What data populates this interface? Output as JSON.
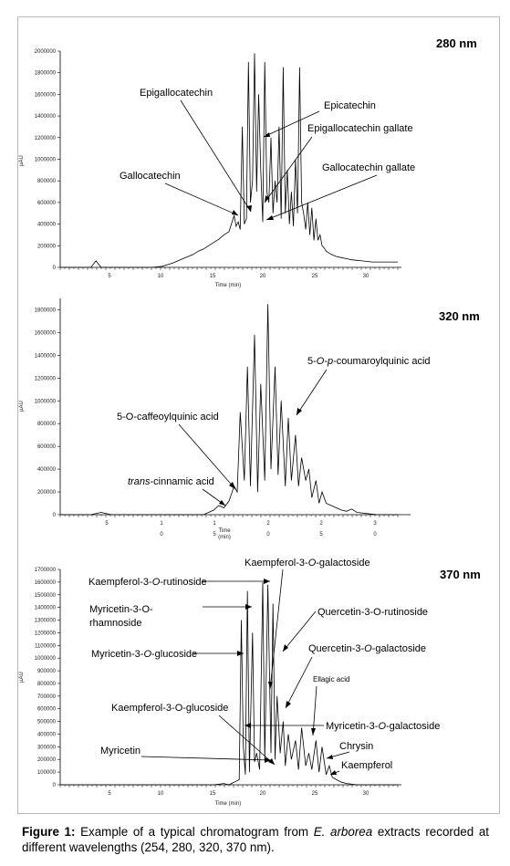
{
  "chart_data": [
    {
      "type": "line",
      "title": "280 nm",
      "ylabel": "µAU",
      "xlabel": "Time (min)",
      "ylim": [
        0,
        2000000
      ],
      "yticks": [
        "0",
        "200000",
        "400000",
        "600000",
        "800000",
        "1000000",
        "1200000",
        "1400000",
        "1600000",
        "1800000",
        "2000000"
      ],
      "xlim": [
        0,
        33
      ],
      "xticks": [
        "5",
        "10",
        "15",
        "20",
        "25",
        "30"
      ],
      "x": [
        0,
        1,
        2,
        3,
        3.5,
        4,
        5,
        6,
        7,
        8,
        9,
        9.5,
        10,
        10.5,
        11,
        11.5,
        12,
        12.5,
        13,
        13.5,
        14,
        14.5,
        15,
        15.5,
        16,
        16.5,
        17,
        17.2,
        17.4,
        17.6,
        17.8,
        18,
        18.2,
        18.4,
        18.6,
        18.8,
        19,
        19.2,
        19.4,
        19.6,
        19.8,
        20,
        20.2,
        20.4,
        20.6,
        20.8,
        21,
        21.2,
        21.4,
        21.6,
        21.8,
        22,
        22.2,
        22.4,
        22.6,
        22.8,
        23,
        23.2,
        23.4,
        23.6,
        23.8,
        24,
        24.2,
        24.4,
        24.6,
        24.8,
        25,
        25.2,
        25.4,
        25.6,
        25.8,
        26,
        26.5,
        27,
        27.5,
        28,
        28.5,
        29,
        29.5,
        30,
        30.5,
        31,
        31.5,
        32,
        33
      ],
      "values": [
        0,
        0,
        0,
        0,
        60000,
        0,
        0,
        0,
        0,
        0,
        0,
        5000,
        10000,
        25000,
        40000,
        60000,
        80000,
        100000,
        120000,
        150000,
        170000,
        200000,
        230000,
        260000,
        300000,
        330000,
        480000,
        380000,
        420000,
        350000,
        1300000,
        400000,
        450000,
        1900000,
        600000,
        800000,
        1980000,
        700000,
        1600000,
        900000,
        420000,
        1900000,
        700000,
        600000,
        1200000,
        500000,
        800000,
        600000,
        1300000,
        450000,
        1850000,
        500000,
        900000,
        400000,
        700000,
        380000,
        1000000,
        500000,
        1850000,
        600000,
        500000,
        350000,
        600000,
        300000,
        550000,
        250000,
        450000,
        250000,
        300000,
        200000,
        180000,
        150000,
        120000,
        100000,
        90000,
        80000,
        70000,
        65000,
        60000,
        55000,
        50000,
        50000,
        50000,
        50000,
        50000
      ],
      "annotations": [
        "Epigallocatechin",
        "Epicatechin",
        "Epigallocatechin gallate",
        "Gallocatechin gallate",
        "Gallocatechin"
      ]
    },
    {
      "type": "line",
      "title": "320 nm",
      "ylabel": "µAU",
      "xlabel": "Time\n(min)",
      "ylim": [
        0,
        1900000
      ],
      "yticks": [
        "0",
        "200000",
        "400000",
        "600000",
        "800000",
        "1000000",
        "1200000",
        "1400000",
        "1600000",
        "1800000"
      ],
      "xticks": [
        "5",
        "1\n0",
        "1\n5",
        "2\n0",
        "2\n5",
        "3\n0"
      ],
      "x": [
        0,
        1,
        2,
        3,
        4,
        5,
        6,
        7,
        8,
        9,
        10,
        11,
        12,
        13,
        14,
        15,
        15.5,
        16,
        16.5,
        17,
        17.3,
        17.6,
        18,
        18.3,
        18.6,
        19,
        19.3,
        19.6,
        20,
        20.3,
        20.6,
        21,
        21.3,
        21.6,
        22,
        22.3,
        22.6,
        23,
        23.3,
        23.6,
        24,
        24.3,
        24.6,
        25,
        25.3,
        25.6,
        26,
        26.5,
        27,
        27.5,
        28,
        28.5,
        29,
        30,
        31,
        32,
        33
      ],
      "values": [
        0,
        0,
        0,
        0,
        20000,
        0,
        0,
        0,
        0,
        0,
        0,
        0,
        0,
        0,
        0,
        40000,
        80000,
        60000,
        120000,
        250000,
        200000,
        900000,
        300000,
        1300000,
        250000,
        1580000,
        200000,
        1150000,
        300000,
        1850000,
        400000,
        1300000,
        350000,
        1000000,
        250000,
        850000,
        300000,
        700000,
        250000,
        500000,
        300000,
        400000,
        150000,
        300000,
        100000,
        200000,
        100000,
        80000,
        60000,
        40000,
        30000,
        50000,
        20000,
        10000,
        0,
        0,
        0
      ],
      "annotations": [
        "5-O-p-coumaroylquinic acid",
        "5-O-caffeoylquinic acid",
        "trans-cinnamic acid"
      ]
    },
    {
      "type": "line",
      "title": "370 nm",
      "ylabel": "µAU",
      "xlabel": "Time (min)",
      "ylim": [
        0,
        1700000
      ],
      "yticks": [
        "0",
        "100000",
        "200000",
        "300000",
        "400000",
        "500000",
        "600000",
        "700000",
        "800000",
        "900000",
        "1000000",
        "1100000",
        "1200000",
        "1300000",
        "1400000",
        "1500000",
        "1600000",
        "1700000"
      ],
      "xticks": [
        "5",
        "10",
        "15",
        "20",
        "25",
        "30"
      ],
      "x": [
        0,
        5,
        10,
        15,
        16,
        16.5,
        17,
        17.5,
        17.7,
        17.9,
        18.1,
        18.3,
        18.5,
        18.8,
        19,
        19.2,
        19.5,
        19.8,
        20,
        20.3,
        20.6,
        20.8,
        21,
        21.2,
        21.5,
        21.8,
        22,
        22.3,
        22.6,
        23,
        23.3,
        23.6,
        24,
        24.3,
        24.6,
        25,
        25.3,
        25.6,
        26,
        26.3,
        26.6,
        27,
        27.5,
        28,
        29,
        30,
        31,
        33
      ],
      "values": [
        0,
        0,
        0,
        0,
        10000,
        0,
        20000,
        40000,
        1300000,
        300000,
        80000,
        1530000,
        100000,
        1200000,
        180000,
        250000,
        120000,
        1600000,
        200000,
        1580000,
        250000,
        1430000,
        200000,
        700000,
        250000,
        500000,
        150000,
        400000,
        200000,
        350000,
        120000,
        450000,
        150000,
        250000,
        120000,
        350000,
        100000,
        300000,
        80000,
        150000,
        60000,
        40000,
        20000,
        10000,
        0,
        0,
        0,
        0
      ],
      "annotations": [
        "Kaempferol-3-O-galactoside",
        "Kaempferol-3-O-rutinoside",
        "Myricetin-3-O-",
        "rhamnoside",
        "Quercetin-3-O-rutinoside",
        "Myricetin-3-O-glucoside",
        "Quercetin-3-O-galactoside",
        "Ellagic acid",
        "Kaempferol-3-O-glucoside",
        "Myricetin-3-O-galactoside",
        "Chrysin",
        "Myricetin",
        "Kaempferol"
      ]
    }
  ],
  "caption": {
    "label": "Figure 1:",
    "text_before": " Example of a typical chromatogram from ",
    "species": "E. arborea",
    "text_after": " extracts recorded at different wavelengths (254, 280, 320, 370 nm)."
  }
}
